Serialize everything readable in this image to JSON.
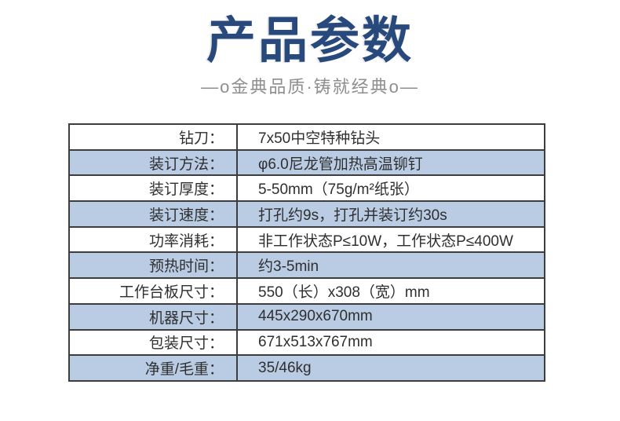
{
  "header": {
    "title": "产品参数",
    "subtitle": "—o金典品质·铸就经典o—"
  },
  "table": {
    "rows": [
      {
        "label": "钻刀：",
        "value": "7x50中空特种钻头"
      },
      {
        "label": "装订方法：",
        "value": "φ6.0尼龙管加热高温铆钉"
      },
      {
        "label": "装订厚度：",
        "value": "5-50mm（75g/m²纸张）"
      },
      {
        "label": "装订速度：",
        "value": "打孔约9s，打孔并装订约30s"
      },
      {
        "label": "功率消耗：",
        "value": "非工作状态P≤10W，工作状态P≤400W"
      },
      {
        "label": "预热时间：",
        "value": "约3-5min"
      },
      {
        "label": "工作台板尺寸：",
        "value": "550（长）x308（宽）mm"
      },
      {
        "label": "机器尺寸：",
        "value": "445x290x670mm"
      },
      {
        "label": "包装尺寸：",
        "value": "671x513x767mm"
      },
      {
        "label": "净重/毛重：",
        "value": "35/46kg"
      }
    ]
  },
  "colors": {
    "title_blue": "#28497c",
    "subtitle_gray": "#8e8e8e",
    "row_stripe_blue": "#b9cce4",
    "table_border": "#3d3d3d",
    "text": "#2f2f2f"
  }
}
